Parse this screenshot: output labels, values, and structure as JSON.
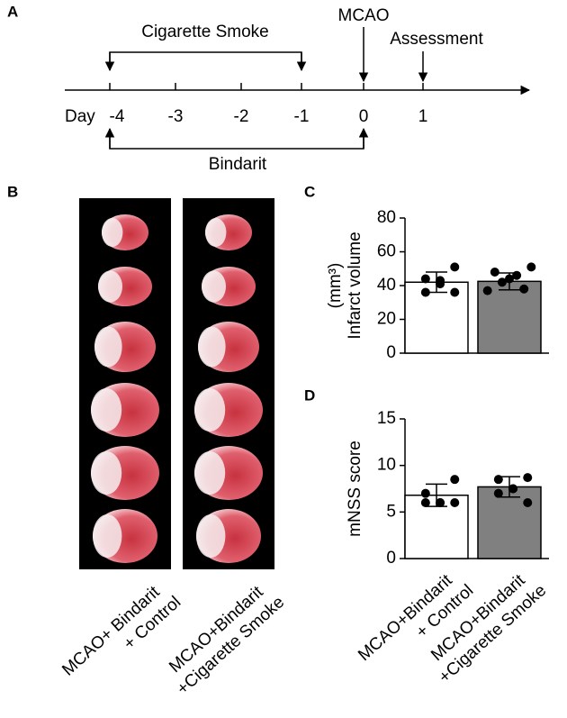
{
  "panel_labels": [
    "A",
    "B",
    "C",
    "D"
  ],
  "timeline": {
    "day_label": "Day",
    "ticks": [
      "-4",
      "-3",
      "-2",
      "-1",
      "0",
      "1"
    ],
    "cigarette": "Cigarette Smoke",
    "mcao": "MCAO",
    "assessment": "Assessment",
    "bindarit": "Bindarit"
  },
  "images": {
    "labels": [
      [
        "MCAO+ Bindarit",
        "+ Control"
      ],
      [
        "MCAO+Bindarit",
        "+Cigarette Smoke"
      ]
    ]
  },
  "chart_data": [
    {
      "type": "bar",
      "ylabel": [
        "Infarct volume",
        "(mm³)"
      ],
      "categories": [
        [
          "MCAO+Bindarit",
          "+ Control"
        ],
        [
          "MCAO+Bindarit",
          "+Cigarette Smoke"
        ]
      ],
      "values": [
        42,
        42.5
      ],
      "errors": [
        6,
        5
      ],
      "colors": [
        "#ffffff",
        "#808080"
      ],
      "points": [
        [
          51,
          44,
          43,
          41,
          36,
          36
        ],
        [
          51,
          48,
          46,
          44,
          42,
          38,
          37
        ]
      ],
      "ylim": [
        0,
        80
      ],
      "yticks": [
        0,
        20,
        40,
        60,
        80
      ]
    },
    {
      "type": "bar",
      "ylabel": [
        "mNSS score"
      ],
      "categories": [
        [
          "MCAO+Bindarit",
          "+ Control"
        ],
        [
          "MCAO+Bindarit",
          "+Cigarette Smoke"
        ]
      ],
      "values": [
        6.8,
        7.7
      ],
      "errors": [
        1.2,
        1.1
      ],
      "colors": [
        "#ffffff",
        "#808080"
      ],
      "points": [
        [
          8.5,
          7,
          6,
          6,
          6,
          6
        ],
        [
          8.7,
          8.5,
          7.5,
          7.5,
          7,
          6
        ]
      ],
      "ylim": [
        0,
        15
      ],
      "yticks": [
        0,
        5,
        10,
        15
      ]
    }
  ]
}
